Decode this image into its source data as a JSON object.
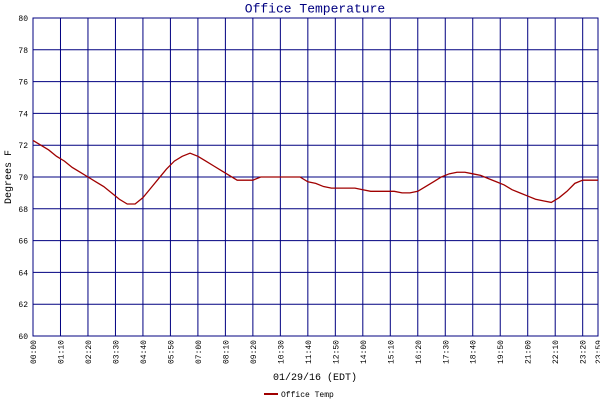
{
  "chart_data": {
    "type": "line",
    "title": "Office Temperature",
    "x_label": "01/29/16 (EDT)",
    "y_label": "Degrees F",
    "x": [
      0,
      20,
      40,
      60,
      80,
      100,
      120,
      140,
      160,
      180,
      200,
      220,
      240,
      260,
      280,
      300,
      320,
      340,
      360,
      380,
      400,
      420,
      440,
      460,
      480,
      500,
      520,
      540,
      560,
      580,
      600,
      620,
      640,
      660,
      680,
      700,
      720,
      740,
      760,
      780,
      800,
      820,
      840,
      860,
      880,
      900,
      920,
      940,
      960,
      980,
      1000,
      1020,
      1040,
      1060,
      1080,
      1100,
      1120,
      1140,
      1160,
      1180,
      1200,
      1220,
      1240,
      1260,
      1280,
      1300,
      1320,
      1340,
      1360,
      1380,
      1400,
      1420,
      1439
    ],
    "series": [
      {
        "name": "Office Temp",
        "color": "#a00000",
        "values": [
          72.3,
          72.0,
          71.7,
          71.3,
          71.0,
          70.6,
          70.3,
          70.0,
          69.7,
          69.4,
          69.0,
          68.6,
          68.3,
          68.3,
          68.7,
          69.3,
          69.9,
          70.5,
          71.0,
          71.3,
          71.5,
          71.3,
          71.0,
          70.7,
          70.4,
          70.1,
          69.8,
          69.8,
          69.8,
          70.0,
          70.0,
          70.0,
          70.0,
          70.0,
          70.0,
          69.7,
          69.6,
          69.4,
          69.3,
          69.3,
          69.3,
          69.3,
          69.2,
          69.1,
          69.1,
          69.1,
          69.1,
          69.0,
          69.0,
          69.1,
          69.4,
          69.7,
          70.0,
          70.2,
          70.3,
          70.3,
          70.2,
          70.1,
          69.9,
          69.7,
          69.5,
          69.2,
          69.0,
          68.8,
          68.6,
          68.5,
          68.4,
          68.7,
          69.1,
          69.6,
          69.8,
          69.8,
          69.8
        ]
      }
    ],
    "xlim": [
      0,
      1439
    ],
    "xticks": [
      {
        "value": 0,
        "label": "00:00"
      },
      {
        "value": 70,
        "label": "01:10"
      },
      {
        "value": 140,
        "label": "02:20"
      },
      {
        "value": 210,
        "label": "03:30"
      },
      {
        "value": 280,
        "label": "04:40"
      },
      {
        "value": 350,
        "label": "05:50"
      },
      {
        "value": 420,
        "label": "07:00"
      },
      {
        "value": 490,
        "label": "08:10"
      },
      {
        "value": 560,
        "label": "09:20"
      },
      {
        "value": 630,
        "label": "10:30"
      },
      {
        "value": 700,
        "label": "11:40"
      },
      {
        "value": 770,
        "label": "12:50"
      },
      {
        "value": 840,
        "label": "14:00"
      },
      {
        "value": 910,
        "label": "15:10"
      },
      {
        "value": 980,
        "label": "16:20"
      },
      {
        "value": 1050,
        "label": "17:30"
      },
      {
        "value": 1120,
        "label": "18:40"
      },
      {
        "value": 1190,
        "label": "19:50"
      },
      {
        "value": 1260,
        "label": "21:00"
      },
      {
        "value": 1330,
        "label": "22:10"
      },
      {
        "value": 1400,
        "label": "23:20"
      },
      {
        "value": 1439,
        "label": "23:59"
      }
    ],
    "ylim": [
      60,
      80
    ],
    "yticks": [
      60,
      62,
      64,
      66,
      68,
      70,
      72,
      74,
      76,
      78,
      80
    ],
    "grid": true
  }
}
